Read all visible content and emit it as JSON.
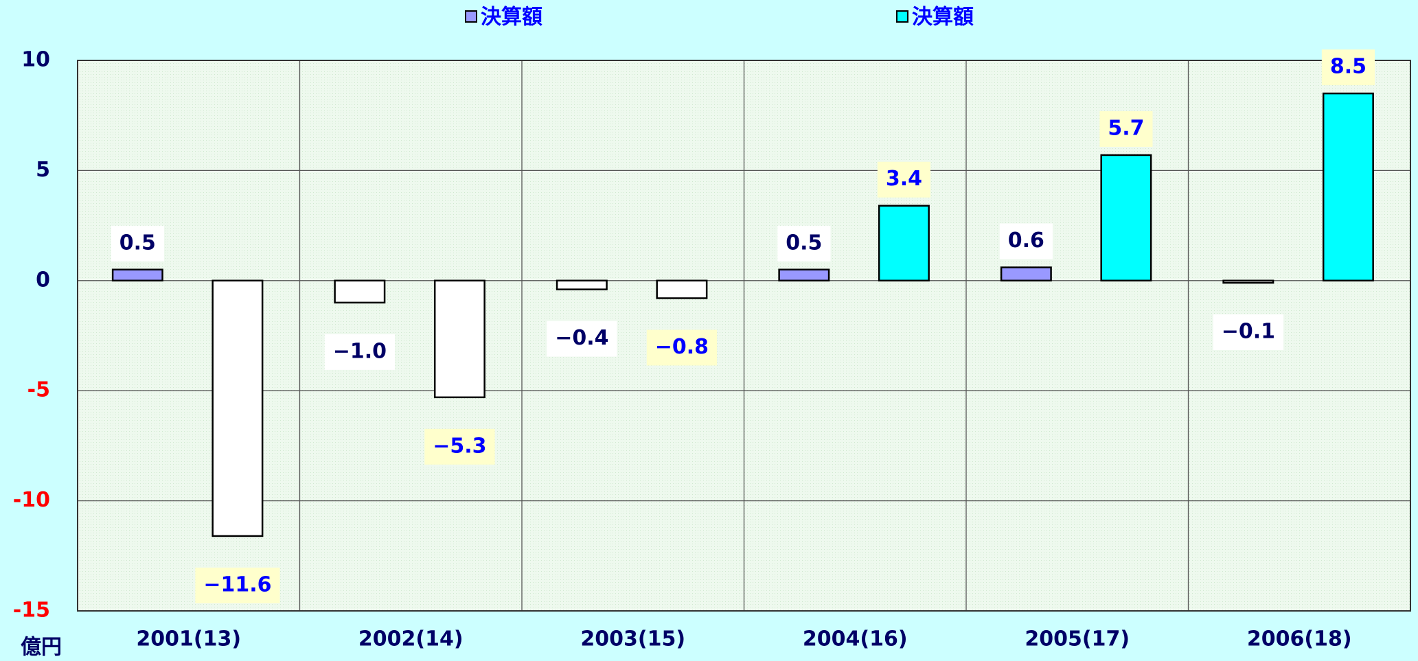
{
  "chart_data": {
    "type": "bar",
    "categories": [
      "2001(13)",
      "2002(14)",
      "2003(15)",
      "2004(16)",
      "2005(17)",
      "2006(18)"
    ],
    "series": [
      {
        "name": "決算額",
        "color": "#9999ff",
        "values": [
          0.5,
          -1.0,
          -0.4,
          0.5,
          0.6,
          -0.1
        ],
        "value_labels": [
          "0.5",
          "−1.0",
          "−0.4",
          "0.5",
          "0.6",
          "−0.1"
        ],
        "label_color": "#000066",
        "label_background": "#ffffff"
      },
      {
        "name": "決算額",
        "color": "#00ffff",
        "values": [
          -11.6,
          -5.3,
          -0.8,
          3.4,
          5.7,
          8.5
        ],
        "value_labels": [
          "−11.6",
          "−5.3",
          "−0.8",
          "3.4",
          "5.7",
          "8.5"
        ],
        "label_color": "#0000ff",
        "label_background": "#ffffcc"
      }
    ],
    "negative_color": "#ffffff",
    "ylim": [
      -15,
      10
    ],
    "yticks": [
      -15,
      -10,
      -5,
      0,
      5,
      10
    ],
    "tick_color": "#000066",
    "negative_tick_color": "#ff0000",
    "y_label": "億円",
    "grid": true,
    "legend": "top"
  }
}
